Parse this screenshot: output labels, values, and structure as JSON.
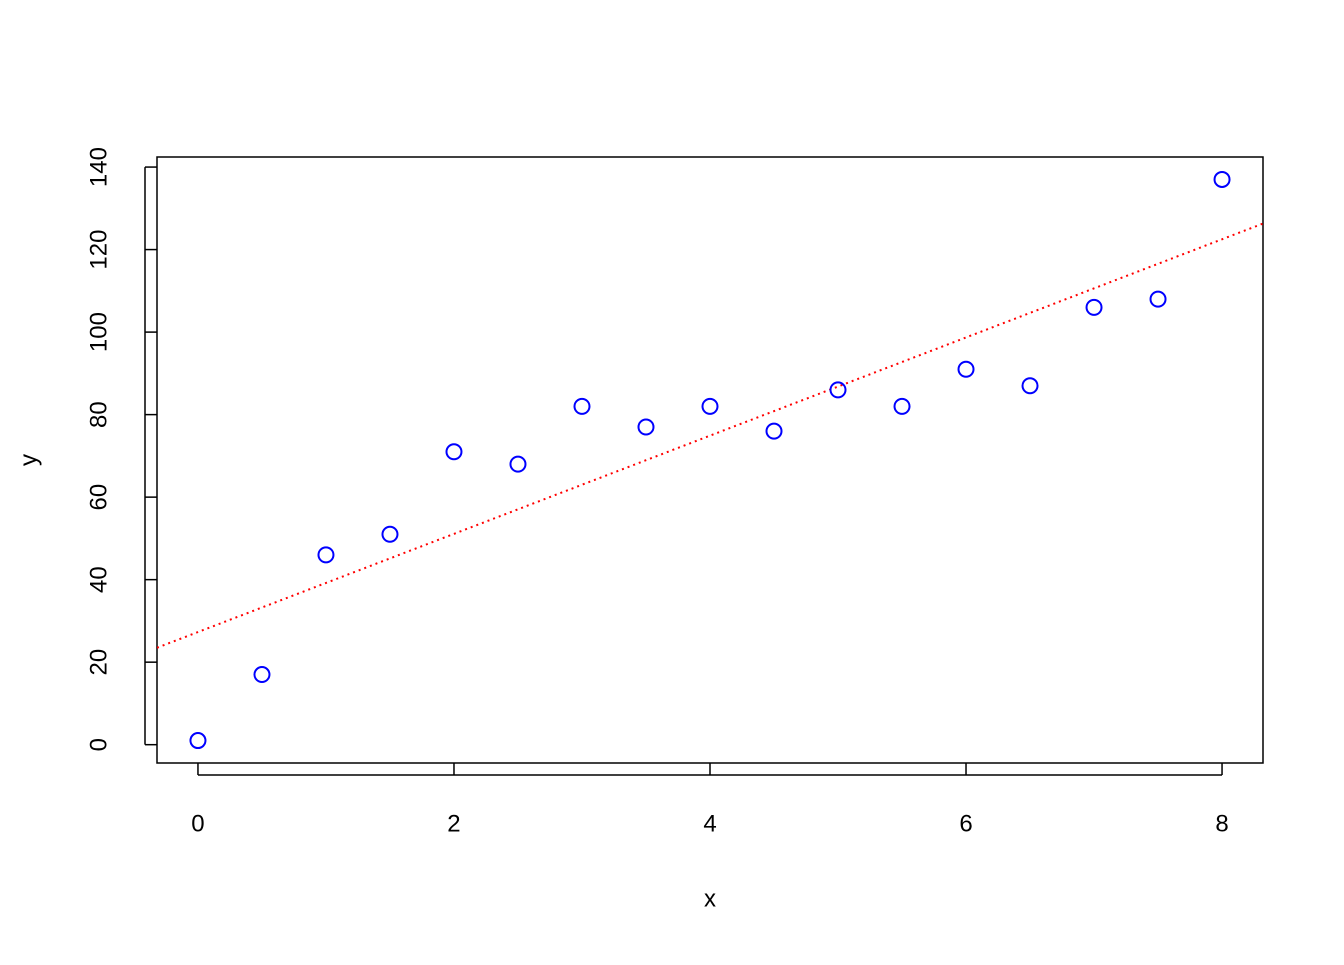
{
  "chart_data": {
    "type": "scatter",
    "x": [
      0,
      0.5,
      1,
      1.5,
      2,
      2.5,
      3,
      3.5,
      4,
      4.5,
      5,
      5.5,
      6,
      6.5,
      7,
      7.5,
      8
    ],
    "values": [
      1,
      17,
      46,
      51,
      71,
      68,
      82,
      77,
      82,
      76,
      86,
      82,
      91,
      87,
      106,
      108,
      137
    ],
    "color": "#0000ff",
    "xlabel": "x",
    "ylabel": "y",
    "xlim": [
      -0.32,
      8.32
    ],
    "xticks": [
      0,
      2,
      4,
      6,
      8
    ],
    "ylim": [
      -4.44,
      142.44
    ],
    "yticks": [
      0,
      20,
      40,
      60,
      80,
      100,
      120,
      140
    ],
    "fit_line": {
      "intercept": 27.3,
      "slope": 11.9,
      "color": "#ff0000"
    }
  }
}
